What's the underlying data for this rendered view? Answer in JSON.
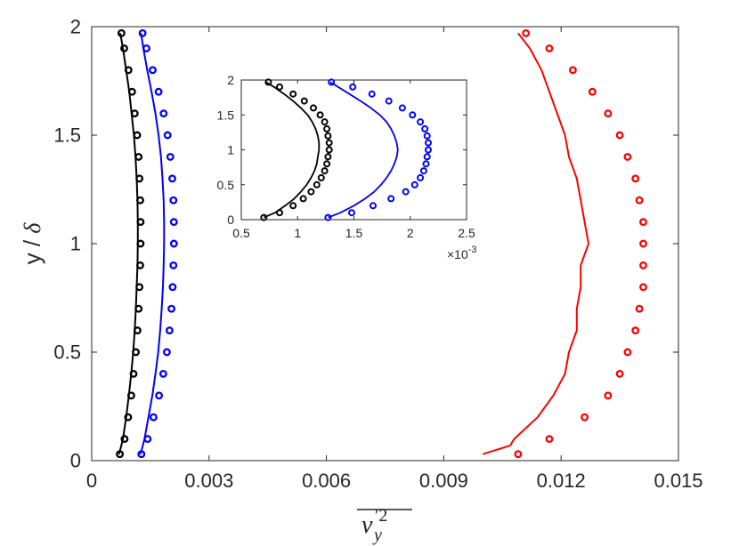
{
  "chart_data": [
    {
      "type": "line",
      "panel": "main",
      "xlabel": "v'y2 (overlined)",
      "ylabel": "y / δ",
      "xlim": [
        0,
        0.015
      ],
      "ylim": [
        0,
        2
      ],
      "x_ticks": [
        0,
        0.003,
        0.006,
        0.009,
        0.012,
        0.015
      ],
      "x_tick_labels": [
        "0",
        "0.003",
        "0.006",
        "0.009",
        "0.012",
        "0.015"
      ],
      "y_ticks": [
        0,
        0.5,
        1,
        1.5,
        2
      ],
      "y_tick_labels": [
        "0",
        "0.5",
        "1",
        "1.5",
        "2"
      ],
      "grid": false,
      "legend": "none",
      "series": [
        {
          "style": "line",
          "color": "#000000",
          "y": [
            0.03,
            0.1,
            0.2,
            0.3,
            0.4,
            0.5,
            0.6,
            0.7,
            0.8,
            0.9,
            1.0,
            1.1,
            1.2,
            1.3,
            1.4,
            1.5,
            1.6,
            1.7,
            1.8,
            1.9,
            1.97
          ],
          "x": [
            0.0007,
            0.0008,
            0.00088,
            0.00095,
            0.00101,
            0.00106,
            0.0011,
            0.00113,
            0.00115,
            0.00117,
            0.00118,
            0.00118,
            0.00117,
            0.00115,
            0.00112,
            0.00108,
            0.00102,
            0.00096,
            0.00088,
            0.0008,
            0.00073
          ]
        },
        {
          "style": "circles",
          "color": "#000000",
          "y": [
            0.03,
            0.1,
            0.2,
            0.3,
            0.4,
            0.5,
            0.6,
            0.7,
            0.8,
            0.9,
            1.0,
            1.1,
            1.2,
            1.3,
            1.4,
            1.5,
            1.6,
            1.7,
            1.8,
            1.9,
            1.97
          ],
          "x": [
            0.00072,
            0.00084,
            0.00093,
            0.00101,
            0.00107,
            0.00113,
            0.00117,
            0.0012,
            0.00122,
            0.00124,
            0.00125,
            0.00125,
            0.00124,
            0.00122,
            0.0012,
            0.00116,
            0.0011,
            0.00103,
            0.00094,
            0.00083,
            0.00076
          ]
        },
        {
          "style": "line",
          "color": "#0000ff",
          "y": [
            0.03,
            0.1,
            0.2,
            0.3,
            0.4,
            0.5,
            0.6,
            0.7,
            0.8,
            0.9,
            1.0,
            1.1,
            1.2,
            1.3,
            1.4,
            1.5,
            1.6,
            1.7,
            1.8,
            1.9,
            1.97
          ],
          "x": [
            0.00125,
            0.00135,
            0.00145,
            0.00155,
            0.00163,
            0.0017,
            0.00175,
            0.00179,
            0.00182,
            0.00184,
            0.00185,
            0.00185,
            0.00184,
            0.00181,
            0.00177,
            0.00171,
            0.00163,
            0.00153,
            0.00142,
            0.00132,
            0.00126
          ]
        },
        {
          "style": "circles",
          "color": "#0000ff",
          "y": [
            0.03,
            0.1,
            0.2,
            0.3,
            0.4,
            0.5,
            0.6,
            0.7,
            0.8,
            0.9,
            1.0,
            1.1,
            1.2,
            1.3,
            1.4,
            1.5,
            1.6,
            1.7,
            1.8,
            1.9,
            1.97
          ],
          "x": [
            0.00127,
            0.00143,
            0.00158,
            0.00172,
            0.00183,
            0.00192,
            0.00199,
            0.00204,
            0.00207,
            0.00209,
            0.0021,
            0.0021,
            0.00209,
            0.00206,
            0.00201,
            0.00194,
            0.00184,
            0.00171,
            0.00156,
            0.0014,
            0.0013
          ]
        },
        {
          "style": "line",
          "color": "#ff0000",
          "y": [
            0.03,
            0.07,
            0.1,
            0.2,
            0.3,
            0.4,
            0.5,
            0.6,
            0.7,
            0.8,
            0.9,
            1.0,
            1.1,
            1.2,
            1.3,
            1.4,
            1.5,
            1.6,
            1.7,
            1.8,
            1.9,
            1.97
          ],
          "x": [
            0.01,
            0.0107,
            0.0108,
            0.0114,
            0.0118,
            0.0121,
            0.0122,
            0.0124,
            0.0124,
            0.0125,
            0.0125,
            0.0127,
            0.0126,
            0.0125,
            0.0124,
            0.0122,
            0.0121,
            0.0119,
            0.0117,
            0.0115,
            0.0112,
            0.0109
          ]
        },
        {
          "style": "circles",
          "color": "#ff0000",
          "y": [
            0.03,
            0.1,
            0.2,
            0.3,
            0.4,
            0.5,
            0.6,
            0.7,
            0.8,
            0.9,
            1.0,
            1.1,
            1.2,
            1.3,
            1.4,
            1.5,
            1.6,
            1.7,
            1.8,
            1.9,
            1.97
          ],
          "x": [
            0.0109,
            0.0117,
            0.0126,
            0.0132,
            0.0135,
            0.0137,
            0.0139,
            0.014,
            0.0141,
            0.0141,
            0.0141,
            0.0141,
            0.014,
            0.0139,
            0.0137,
            0.0135,
            0.0132,
            0.0128,
            0.0123,
            0.0117,
            0.0111
          ]
        }
      ]
    },
    {
      "type": "line",
      "panel": "inset",
      "xlim": [
        0.5,
        2.5
      ],
      "ylim": [
        0,
        2
      ],
      "x_ticks": [
        0.5,
        1,
        1.5,
        2,
        2.5
      ],
      "x_tick_labels": [
        "0.5",
        "1",
        "1.5",
        "2",
        "2.5"
      ],
      "x_multiplier": "×10",
      "x_multiplier_exp": "-3",
      "y_ticks": [
        0,
        0.5,
        1,
        1.5,
        2
      ],
      "y_tick_labels": [
        "0",
        "0.5",
        "1",
        "1.5",
        "2"
      ],
      "grid": false,
      "series": [
        {
          "style": "line",
          "color": "#000000",
          "y": [
            0.03,
            0.1,
            0.2,
            0.3,
            0.4,
            0.5,
            0.6,
            0.7,
            0.8,
            0.9,
            1.0,
            1.1,
            1.2,
            1.3,
            1.4,
            1.5,
            1.6,
            1.7,
            1.8,
            1.9,
            1.97
          ],
          "x": [
            0.7,
            0.8,
            0.89,
            0.97,
            1.03,
            1.08,
            1.12,
            1.15,
            1.17,
            1.18,
            1.19,
            1.19,
            1.18,
            1.16,
            1.13,
            1.09,
            1.03,
            0.96,
            0.88,
            0.79,
            0.72
          ]
        },
        {
          "style": "circles",
          "color": "#000000",
          "y": [
            0.03,
            0.1,
            0.2,
            0.3,
            0.4,
            0.5,
            0.6,
            0.7,
            0.8,
            0.9,
            1.0,
            1.1,
            1.2,
            1.3,
            1.4,
            1.5,
            1.6,
            1.7,
            1.8,
            1.9,
            1.97
          ],
          "x": [
            0.7,
            0.84,
            0.96,
            1.05,
            1.12,
            1.17,
            1.21,
            1.24,
            1.26,
            1.27,
            1.28,
            1.28,
            1.27,
            1.26,
            1.24,
            1.2,
            1.14,
            1.06,
            0.96,
            0.84,
            0.74
          ]
        },
        {
          "style": "line",
          "color": "#0000ff",
          "y": [
            0.03,
            0.1,
            0.2,
            0.3,
            0.4,
            0.5,
            0.6,
            0.7,
            0.8,
            0.9,
            1.0,
            1.1,
            1.2,
            1.3,
            1.4,
            1.5,
            1.6,
            1.7,
            1.8,
            1.9,
            1.97
          ],
          "x": [
            1.27,
            1.38,
            1.5,
            1.6,
            1.68,
            1.74,
            1.79,
            1.83,
            1.86,
            1.88,
            1.89,
            1.88,
            1.86,
            1.83,
            1.79,
            1.73,
            1.65,
            1.56,
            1.46,
            1.36,
            1.29
          ]
        },
        {
          "style": "circles",
          "color": "#0000ff",
          "y": [
            0.03,
            0.1,
            0.2,
            0.3,
            0.4,
            0.5,
            0.6,
            0.7,
            0.8,
            0.9,
            1.0,
            1.1,
            1.2,
            1.3,
            1.4,
            1.5,
            1.6,
            1.7,
            1.8,
            1.9,
            1.97
          ],
          "x": [
            1.27,
            1.48,
            1.67,
            1.83,
            1.96,
            2.04,
            2.09,
            2.12,
            2.14,
            2.15,
            2.16,
            2.16,
            2.15,
            2.13,
            2.09,
            2.02,
            1.93,
            1.81,
            1.66,
            1.49,
            1.3
          ]
        }
      ]
    }
  ]
}
